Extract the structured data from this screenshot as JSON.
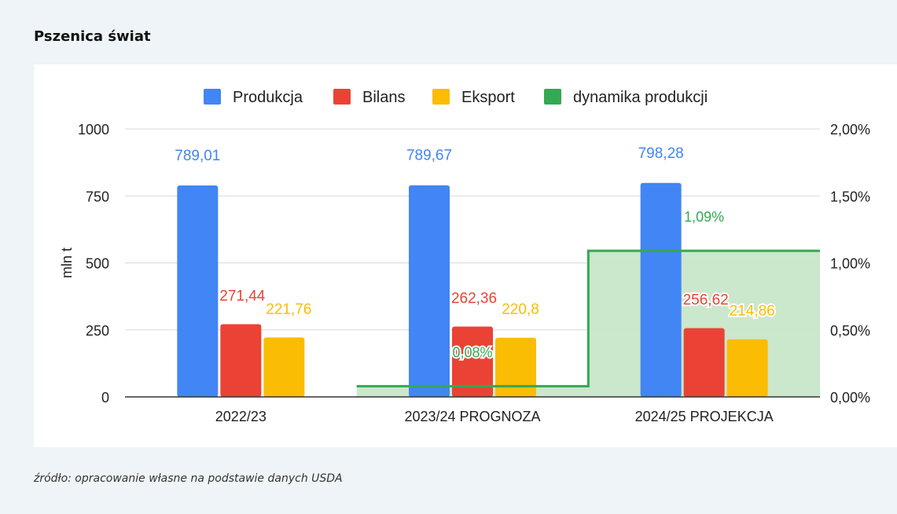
{
  "page": {
    "title": "Pszenica świat",
    "source": "źródło: opracowanie własne na podstawie danych USDA"
  },
  "chart_data": {
    "type": "bar",
    "title": "",
    "categories": [
      "2022/23",
      "2023/24 PROGNOZA",
      "2024/25 PROJEKCJA"
    ],
    "series": [
      {
        "name": "Produkcja",
        "color": "#4285f4",
        "values": [
          789.01,
          789.67,
          798.28
        ],
        "labels": [
          "789,01",
          "789,67",
          "798,28"
        ]
      },
      {
        "name": "Bilans",
        "color": "#ea4335",
        "values": [
          271.44,
          262.36,
          256.62
        ],
        "labels": [
          "271,44",
          "262,36",
          "256,62"
        ]
      },
      {
        "name": "Eksport",
        "color": "#fbbc04",
        "values": [
          221.76,
          220.8,
          214.86
        ],
        "labels": [
          "221,76",
          "220,8",
          "214,86"
        ]
      }
    ],
    "line_series": {
      "name": "dynamika produkcji",
      "type": "stepped-area",
      "axis": "right",
      "color": "#34a853",
      "fill": "#c8e6c9",
      "values": [
        null,
        0.08,
        1.09
      ],
      "labels": [
        "",
        "0,08%",
        "1,09%"
      ]
    },
    "ylabel": "mln t",
    "xlabel": "",
    "ylim": [
      0,
      1000
    ],
    "yticks": [
      "0",
      "250",
      "500",
      "750",
      "1000"
    ],
    "y2lim": [
      0,
      2
    ],
    "y2ticks": [
      "0,00%",
      "0,50%",
      "1,00%",
      "1,50%",
      "2,00%"
    ],
    "grid": true,
    "legend": "top"
  }
}
